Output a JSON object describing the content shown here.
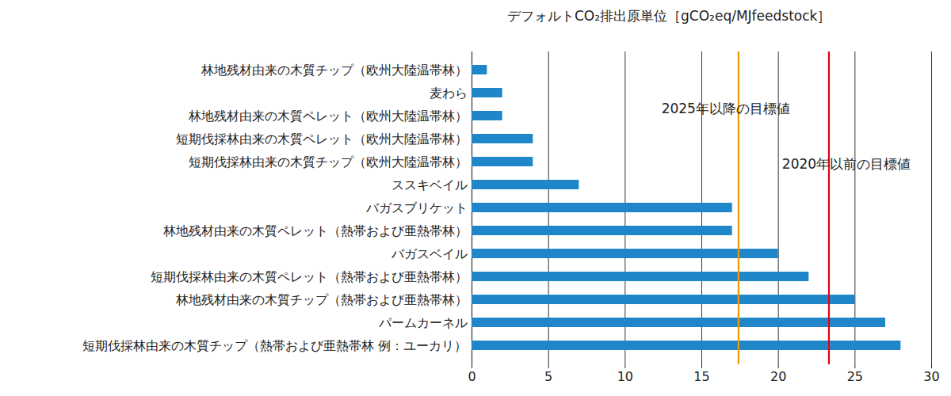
{
  "chart_data": {
    "type": "bar",
    "orientation": "horizontal",
    "title": "デフォルトCO₂排出原単位［gCO₂eq/MJfeedstock］",
    "categories": [
      "林地残材由来の木質チップ（欧州大陸温帯林）",
      "麦わら",
      "林地残材由来の木質ペレット（欧州大陸温帯林）",
      "短期伐採林由来の木質ペレット（欧州大陸温帯林）",
      "短期伐採林由来の木質チップ（欧州大陸温帯林）",
      "ススキベイル",
      "バガスブリケット",
      "林地残材由来の木質ペレット（熱帯および亜熱帯林）",
      "バガスベイル",
      "短期伐採林由来の木質ペレット（熱帯および亜熱帯林）",
      "林地残材由来の木質チップ（熱帯および亜熱帯林）",
      "パームカーネル",
      "短期伐採林由来の木質チップ（熱帯および亜熱帯林 例：ユーカリ）"
    ],
    "values": [
      1,
      2,
      2,
      4,
      4,
      7,
      17,
      17,
      20,
      22,
      25,
      27,
      28
    ],
    "color": "#1f87c9",
    "xlim": [
      0,
      30
    ],
    "xticks": [
      0,
      5,
      10,
      15,
      20,
      25,
      30
    ],
    "grid": true,
    "reference_lines": [
      {
        "value": 17.4,
        "label": "2025年以降の目標値",
        "color": "#f39800"
      },
      {
        "value": 23.3,
        "label": "2020年以前の目標値",
        "color": "#e60012"
      }
    ]
  }
}
